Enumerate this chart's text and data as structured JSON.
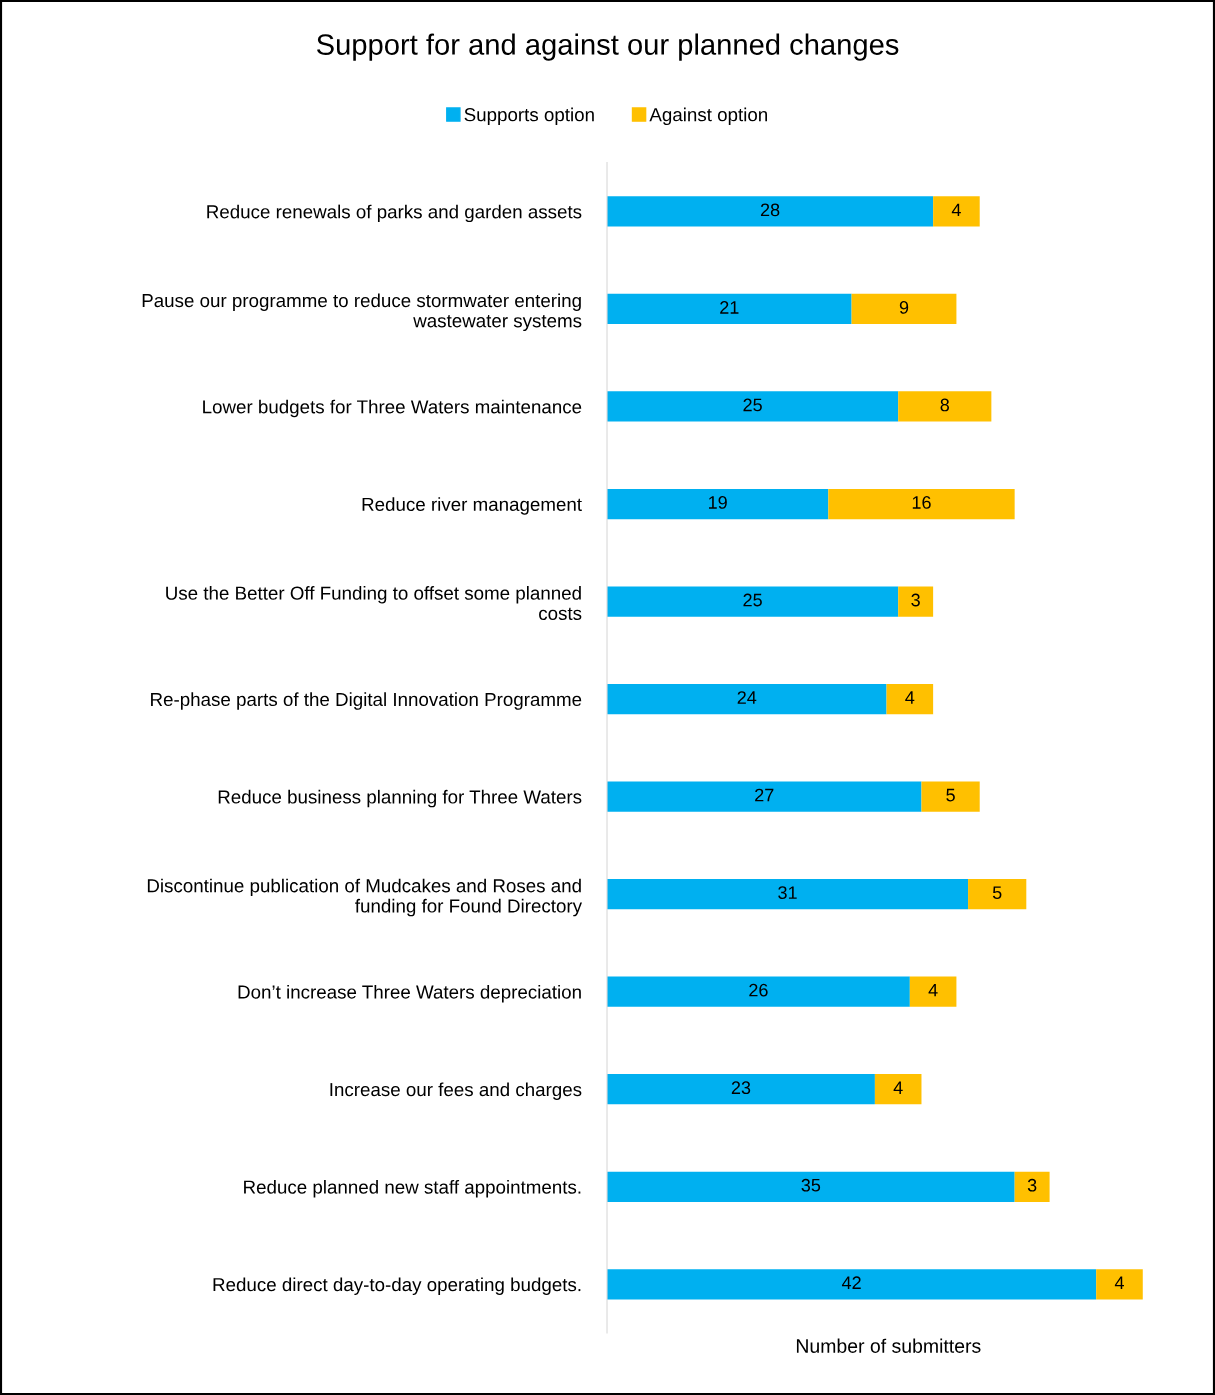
{
  "chart_data": {
    "type": "bar",
    "orientation": "horizontal",
    "stacked": true,
    "title": "Support for and against our planned changes",
    "xlabel": "Number of submitters",
    "categories": [
      "Reduce renewals of parks and garden assets",
      "Pause our programme to reduce stormwater entering\nwastewater systems",
      "Lower budgets for Three Waters maintenance",
      "Reduce river management",
      "Use the Better Off Funding to offset some planned\ncosts",
      "Re-phase parts of the Digital Innovation Programme",
      "Reduce business planning for Three Waters",
      "Discontinue publication of Mudcakes and Roses and\nfunding for Found Directory",
      "Don’t increase Three Waters depreciation",
      "Increase our fees and charges",
      "Reduce planned new staff appointments.",
      "Reduce direct day-to-day operating budgets."
    ],
    "series": [
      {
        "name": "Supports option",
        "color": "#00b0f0",
        "values": [
          28,
          21,
          25,
          19,
          25,
          24,
          27,
          31,
          26,
          23,
          35,
          42
        ]
      },
      {
        "name": "Against option",
        "color": "#ffc000",
        "values": [
          4,
          9,
          8,
          16,
          3,
          4,
          5,
          5,
          4,
          4,
          3,
          4
        ]
      }
    ],
    "data_labels": true,
    "legend": "top",
    "grid": false,
    "tick_labels": "y"
  }
}
